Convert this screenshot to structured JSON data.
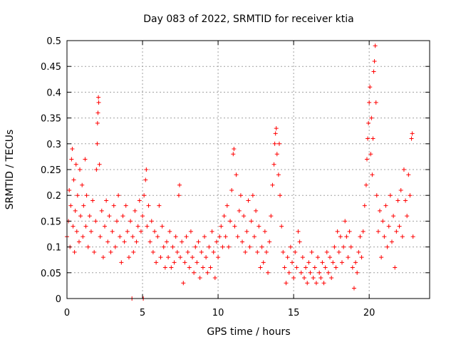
{
  "chart_data": {
    "type": "scatter",
    "title": "Day 083 of 2022, SRMTID for receiver ktia",
    "xlabel": "GPS time / hours",
    "ylabel": "SRMTID / TECUs",
    "xlim": [
      0,
      24
    ],
    "ylim": [
      0,
      0.5
    ],
    "xticks": [
      0,
      5,
      10,
      15,
      20
    ],
    "yticks": [
      0,
      0.05,
      0.1,
      0.15,
      0.2,
      0.25,
      0.3,
      0.35,
      0.4,
      0.45,
      0.5
    ],
    "xtick_labels": [
      "0",
      "5",
      "10",
      "15",
      "20"
    ],
    "ytick_labels": [
      "0",
      "0.05",
      "0.1",
      "0.15",
      "0.2",
      "0.25",
      "0.3",
      "0.35",
      "0.4",
      "0.45",
      "0.5"
    ],
    "grid": true,
    "marker": "+",
    "color": "#ff0000",
    "series": [
      {
        "name": "SRMTID",
        "points": [
          [
            0.0,
            0.12
          ],
          [
            0.1,
            0.15
          ],
          [
            0.15,
            0.21
          ],
          [
            0.2,
            0.1
          ],
          [
            0.25,
            0.18
          ],
          [
            0.3,
            0.27
          ],
          [
            0.35,
            0.29
          ],
          [
            0.4,
            0.14
          ],
          [
            0.45,
            0.23
          ],
          [
            0.5,
            0.09
          ],
          [
            0.55,
            0.17
          ],
          [
            0.6,
            0.26
          ],
          [
            0.65,
            0.13
          ],
          [
            0.7,
            0.2
          ],
          [
            0.8,
            0.11
          ],
          [
            0.85,
            0.25
          ],
          [
            0.9,
            0.16
          ],
          [
            1.0,
            0.22
          ],
          [
            1.05,
            0.12
          ],
          [
            1.1,
            0.18
          ],
          [
            1.2,
            0.27
          ],
          [
            1.25,
            0.14
          ],
          [
            1.3,
            0.2
          ],
          [
            1.4,
            0.1
          ],
          [
            1.5,
            0.16
          ],
          [
            1.6,
            0.13
          ],
          [
            1.7,
            0.19
          ],
          [
            1.8,
            0.09
          ],
          [
            1.9,
            0.15
          ],
          [
            1.95,
            0.25
          ],
          [
            2.0,
            0.3
          ],
          [
            2.02,
            0.34
          ],
          [
            2.05,
            0.36
          ],
          [
            2.08,
            0.39
          ],
          [
            2.1,
            0.38
          ],
          [
            2.15,
            0.26
          ],
          [
            2.2,
            0.12
          ],
          [
            2.3,
            0.17
          ],
          [
            2.4,
            0.08
          ],
          [
            2.5,
            0.14
          ],
          [
            2.6,
            0.19
          ],
          [
            2.7,
            0.11
          ],
          [
            2.8,
            0.16
          ],
          [
            2.9,
            0.09
          ],
          [
            3.0,
            0.13
          ],
          [
            3.1,
            0.18
          ],
          [
            3.2,
            0.1
          ],
          [
            3.3,
            0.15
          ],
          [
            3.4,
            0.2
          ],
          [
            3.5,
            0.12
          ],
          [
            3.6,
            0.07
          ],
          [
            3.7,
            0.16
          ],
          [
            3.8,
            0.11
          ],
          [
            3.9,
            0.18
          ],
          [
            4.0,
            0.13
          ],
          [
            4.1,
            0.08
          ],
          [
            4.2,
            0.15
          ],
          [
            4.3,
            0.0
          ],
          [
            4.35,
            0.12
          ],
          [
            4.4,
            0.09
          ],
          [
            4.5,
            0.17
          ],
          [
            4.6,
            0.11
          ],
          [
            4.7,
            0.14
          ],
          [
            4.8,
            0.19
          ],
          [
            4.9,
            0.13
          ],
          [
            5.0,
            0.16
          ],
          [
            5.05,
            0.0
          ],
          [
            5.1,
            0.2
          ],
          [
            5.2,
            0.23
          ],
          [
            5.25,
            0.25
          ],
          [
            5.3,
            0.14
          ],
          [
            5.4,
            0.18
          ],
          [
            5.5,
            0.11
          ],
          [
            5.6,
            0.15
          ],
          [
            5.7,
            0.09
          ],
          [
            5.8,
            0.13
          ],
          [
            5.9,
            0.07
          ],
          [
            6.0,
            0.12
          ],
          [
            6.1,
            0.18
          ],
          [
            6.2,
            0.08
          ],
          [
            6.3,
            0.14
          ],
          [
            6.4,
            0.1
          ],
          [
            6.5,
            0.06
          ],
          [
            6.6,
            0.11
          ],
          [
            6.7,
            0.08
          ],
          [
            6.8,
            0.13
          ],
          [
            6.9,
            0.06
          ],
          [
            7.0,
            0.1
          ],
          [
            7.1,
            0.07
          ],
          [
            7.2,
            0.12
          ],
          [
            7.3,
            0.09
          ],
          [
            7.4,
            0.2
          ],
          [
            7.45,
            0.22
          ],
          [
            7.5,
            0.08
          ],
          [
            7.6,
            0.11
          ],
          [
            7.7,
            0.03
          ],
          [
            7.8,
            0.07
          ],
          [
            7.9,
            0.12
          ],
          [
            8.0,
            0.09
          ],
          [
            8.1,
            0.06
          ],
          [
            8.2,
            0.13
          ],
          [
            8.3,
            0.08
          ],
          [
            8.4,
            0.05
          ],
          [
            8.5,
            0.1
          ],
          [
            8.6,
            0.07
          ],
          [
            8.7,
            0.11
          ],
          [
            8.8,
            0.04
          ],
          [
            8.9,
            0.09
          ],
          [
            9.0,
            0.06
          ],
          [
            9.1,
            0.12
          ],
          [
            9.2,
            0.08
          ],
          [
            9.3,
            0.05
          ],
          [
            9.4,
            0.1
          ],
          [
            9.5,
            0.06
          ],
          [
            9.6,
            0.13
          ],
          [
            9.7,
            0.09
          ],
          [
            9.8,
            0.04
          ],
          [
            9.9,
            0.11
          ],
          [
            10.0,
            0.08
          ],
          [
            10.1,
            0.12
          ],
          [
            10.2,
            0.14
          ],
          [
            10.3,
            0.1
          ],
          [
            10.4,
            0.16
          ],
          [
            10.5,
            0.12
          ],
          [
            10.6,
            0.18
          ],
          [
            10.7,
            0.1
          ],
          [
            10.8,
            0.15
          ],
          [
            10.9,
            0.21
          ],
          [
            11.0,
            0.28
          ],
          [
            11.05,
            0.29
          ],
          [
            11.1,
            0.14
          ],
          [
            11.2,
            0.24
          ],
          [
            11.3,
            0.12
          ],
          [
            11.4,
            0.17
          ],
          [
            11.5,
            0.2
          ],
          [
            11.6,
            0.11
          ],
          [
            11.7,
            0.16
          ],
          [
            11.8,
            0.09
          ],
          [
            11.9,
            0.13
          ],
          [
            12.0,
            0.19
          ],
          [
            12.1,
            0.1
          ],
          [
            12.2,
            0.15
          ],
          [
            12.3,
            0.2
          ],
          [
            12.4,
            0.12
          ],
          [
            12.5,
            0.17
          ],
          [
            12.6,
            0.09
          ],
          [
            12.7,
            0.14
          ],
          [
            12.8,
            0.06
          ],
          [
            12.9,
            0.1
          ],
          [
            13.0,
            0.07
          ],
          [
            13.1,
            0.13
          ],
          [
            13.2,
            0.09
          ],
          [
            13.3,
            0.05
          ],
          [
            13.4,
            0.11
          ],
          [
            13.5,
            0.16
          ],
          [
            13.6,
            0.22
          ],
          [
            13.7,
            0.26
          ],
          [
            13.75,
            0.3
          ],
          [
            13.8,
            0.32
          ],
          [
            13.85,
            0.33
          ],
          [
            13.9,
            0.28
          ],
          [
            14.0,
            0.24
          ],
          [
            14.05,
            0.3
          ],
          [
            14.1,
            0.2
          ],
          [
            14.2,
            0.14
          ],
          [
            14.3,
            0.09
          ],
          [
            14.4,
            0.06
          ],
          [
            14.5,
            0.03
          ],
          [
            14.6,
            0.08
          ],
          [
            14.7,
            0.05
          ],
          [
            14.8,
            0.1
          ],
          [
            14.9,
            0.07
          ],
          [
            15.0,
            0.04
          ],
          [
            15.1,
            0.09
          ],
          [
            15.2,
            0.06
          ],
          [
            15.3,
            0.13
          ],
          [
            15.4,
            0.11
          ],
          [
            15.5,
            0.05
          ],
          [
            15.6,
            0.08
          ],
          [
            15.7,
            0.04
          ],
          [
            15.8,
            0.06
          ],
          [
            15.9,
            0.03
          ],
          [
            16.0,
            0.07
          ],
          [
            16.1,
            0.05
          ],
          [
            16.2,
            0.09
          ],
          [
            16.3,
            0.04
          ],
          [
            16.4,
            0.06
          ],
          [
            16.5,
            0.03
          ],
          [
            16.6,
            0.08
          ],
          [
            16.7,
            0.05
          ],
          [
            16.8,
            0.04
          ],
          [
            16.9,
            0.07
          ],
          [
            17.0,
            0.03
          ],
          [
            17.1,
            0.06
          ],
          [
            17.2,
            0.09
          ],
          [
            17.3,
            0.05
          ],
          [
            17.4,
            0.08
          ],
          [
            17.5,
            0.04
          ],
          [
            17.6,
            0.07
          ],
          [
            17.7,
            0.1
          ],
          [
            17.8,
            0.06
          ],
          [
            17.9,
            0.13
          ],
          [
            18.0,
            0.09
          ],
          [
            18.1,
            0.12
          ],
          [
            18.2,
            0.07
          ],
          [
            18.3,
            0.1
          ],
          [
            18.4,
            0.15
          ],
          [
            18.5,
            0.12
          ],
          [
            18.6,
            0.08
          ],
          [
            18.7,
            0.13
          ],
          [
            18.8,
            0.1
          ],
          [
            18.9,
            0.06
          ],
          [
            19.0,
            0.02
          ],
          [
            19.1,
            0.07
          ],
          [
            19.2,
            0.05
          ],
          [
            19.3,
            0.09
          ],
          [
            19.4,
            0.12
          ],
          [
            19.5,
            0.08
          ],
          [
            19.6,
            0.13
          ],
          [
            19.7,
            0.18
          ],
          [
            19.8,
            0.22
          ],
          [
            19.85,
            0.27
          ],
          [
            19.9,
            0.31
          ],
          [
            19.95,
            0.34
          ],
          [
            20.0,
            0.38
          ],
          [
            20.05,
            0.41
          ],
          [
            20.1,
            0.28
          ],
          [
            20.15,
            0.35
          ],
          [
            20.2,
            0.24
          ],
          [
            20.25,
            0.31
          ],
          [
            20.3,
            0.44
          ],
          [
            20.35,
            0.46
          ],
          [
            20.4,
            0.49
          ],
          [
            20.45,
            0.38
          ],
          [
            20.5,
            0.2
          ],
          [
            20.6,
            0.13
          ],
          [
            20.7,
            0.17
          ],
          [
            20.8,
            0.08
          ],
          [
            20.9,
            0.15
          ],
          [
            21.0,
            0.12
          ],
          [
            21.1,
            0.18
          ],
          [
            21.2,
            0.1
          ],
          [
            21.3,
            0.14
          ],
          [
            21.4,
            0.2
          ],
          [
            21.5,
            0.11
          ],
          [
            21.6,
            0.16
          ],
          [
            21.7,
            0.06
          ],
          [
            21.8,
            0.13
          ],
          [
            21.9,
            0.19
          ],
          [
            22.0,
            0.14
          ],
          [
            22.1,
            0.21
          ],
          [
            22.2,
            0.12
          ],
          [
            22.3,
            0.25
          ],
          [
            22.4,
            0.19
          ],
          [
            22.5,
            0.16
          ],
          [
            22.6,
            0.24
          ],
          [
            22.7,
            0.2
          ],
          [
            22.8,
            0.31
          ],
          [
            22.85,
            0.32
          ],
          [
            22.9,
            0.12
          ]
        ]
      }
    ]
  }
}
